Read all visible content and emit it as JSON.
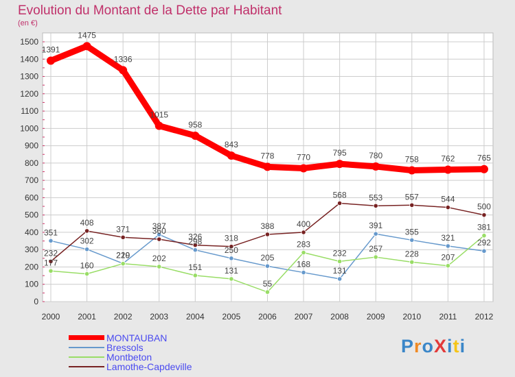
{
  "chart_data": {
    "type": "line",
    "title": "Evolution du Montant de la Dette par Habitant",
    "ylabel": "(en €)",
    "xlabel": "",
    "categories": [
      "2000",
      "2001",
      "2002",
      "2003",
      "2004",
      "2005",
      "2006",
      "2007",
      "2008",
      "2009",
      "2010",
      "2011",
      "2012"
    ],
    "ylim": [
      0,
      1500
    ],
    "yticks": [
      0,
      100,
      200,
      300,
      400,
      500,
      600,
      700,
      800,
      900,
      1000,
      1100,
      1200,
      1300,
      1400,
      1500
    ],
    "grid": true,
    "legend_position": "bottom-left",
    "series": [
      {
        "name": "MONTAUBAN",
        "color": "#ff0000",
        "values": [
          1391,
          1475,
          1336,
          1015,
          958,
          843,
          778,
          770,
          795,
          780,
          758,
          762,
          765
        ]
      },
      {
        "name": "Bressols",
        "color": "#6699cc",
        "values": [
          351,
          302,
          220,
          387,
          298,
          250,
          205,
          168,
          131,
          391,
          355,
          321,
          292
        ]
      },
      {
        "name": "Montbeton",
        "color": "#99dd66",
        "values": [
          177,
          160,
          219,
          202,
          151,
          131,
          55,
          283,
          232,
          257,
          228,
          207,
          381
        ]
      },
      {
        "name": "Lamothe-Capdeville",
        "color": "#772222",
        "values": [
          232,
          408,
          371,
          360,
          326,
          318,
          388,
          400,
          568,
          553,
          557,
          544,
          500
        ]
      }
    ]
  },
  "logo": {
    "text": "ProXiti",
    "colors": [
      "#3a86c8",
      "#f08a24",
      "#3a86c8",
      "#e23a3a",
      "#3a86c8",
      "#f5c518",
      "#3a86c8"
    ]
  }
}
